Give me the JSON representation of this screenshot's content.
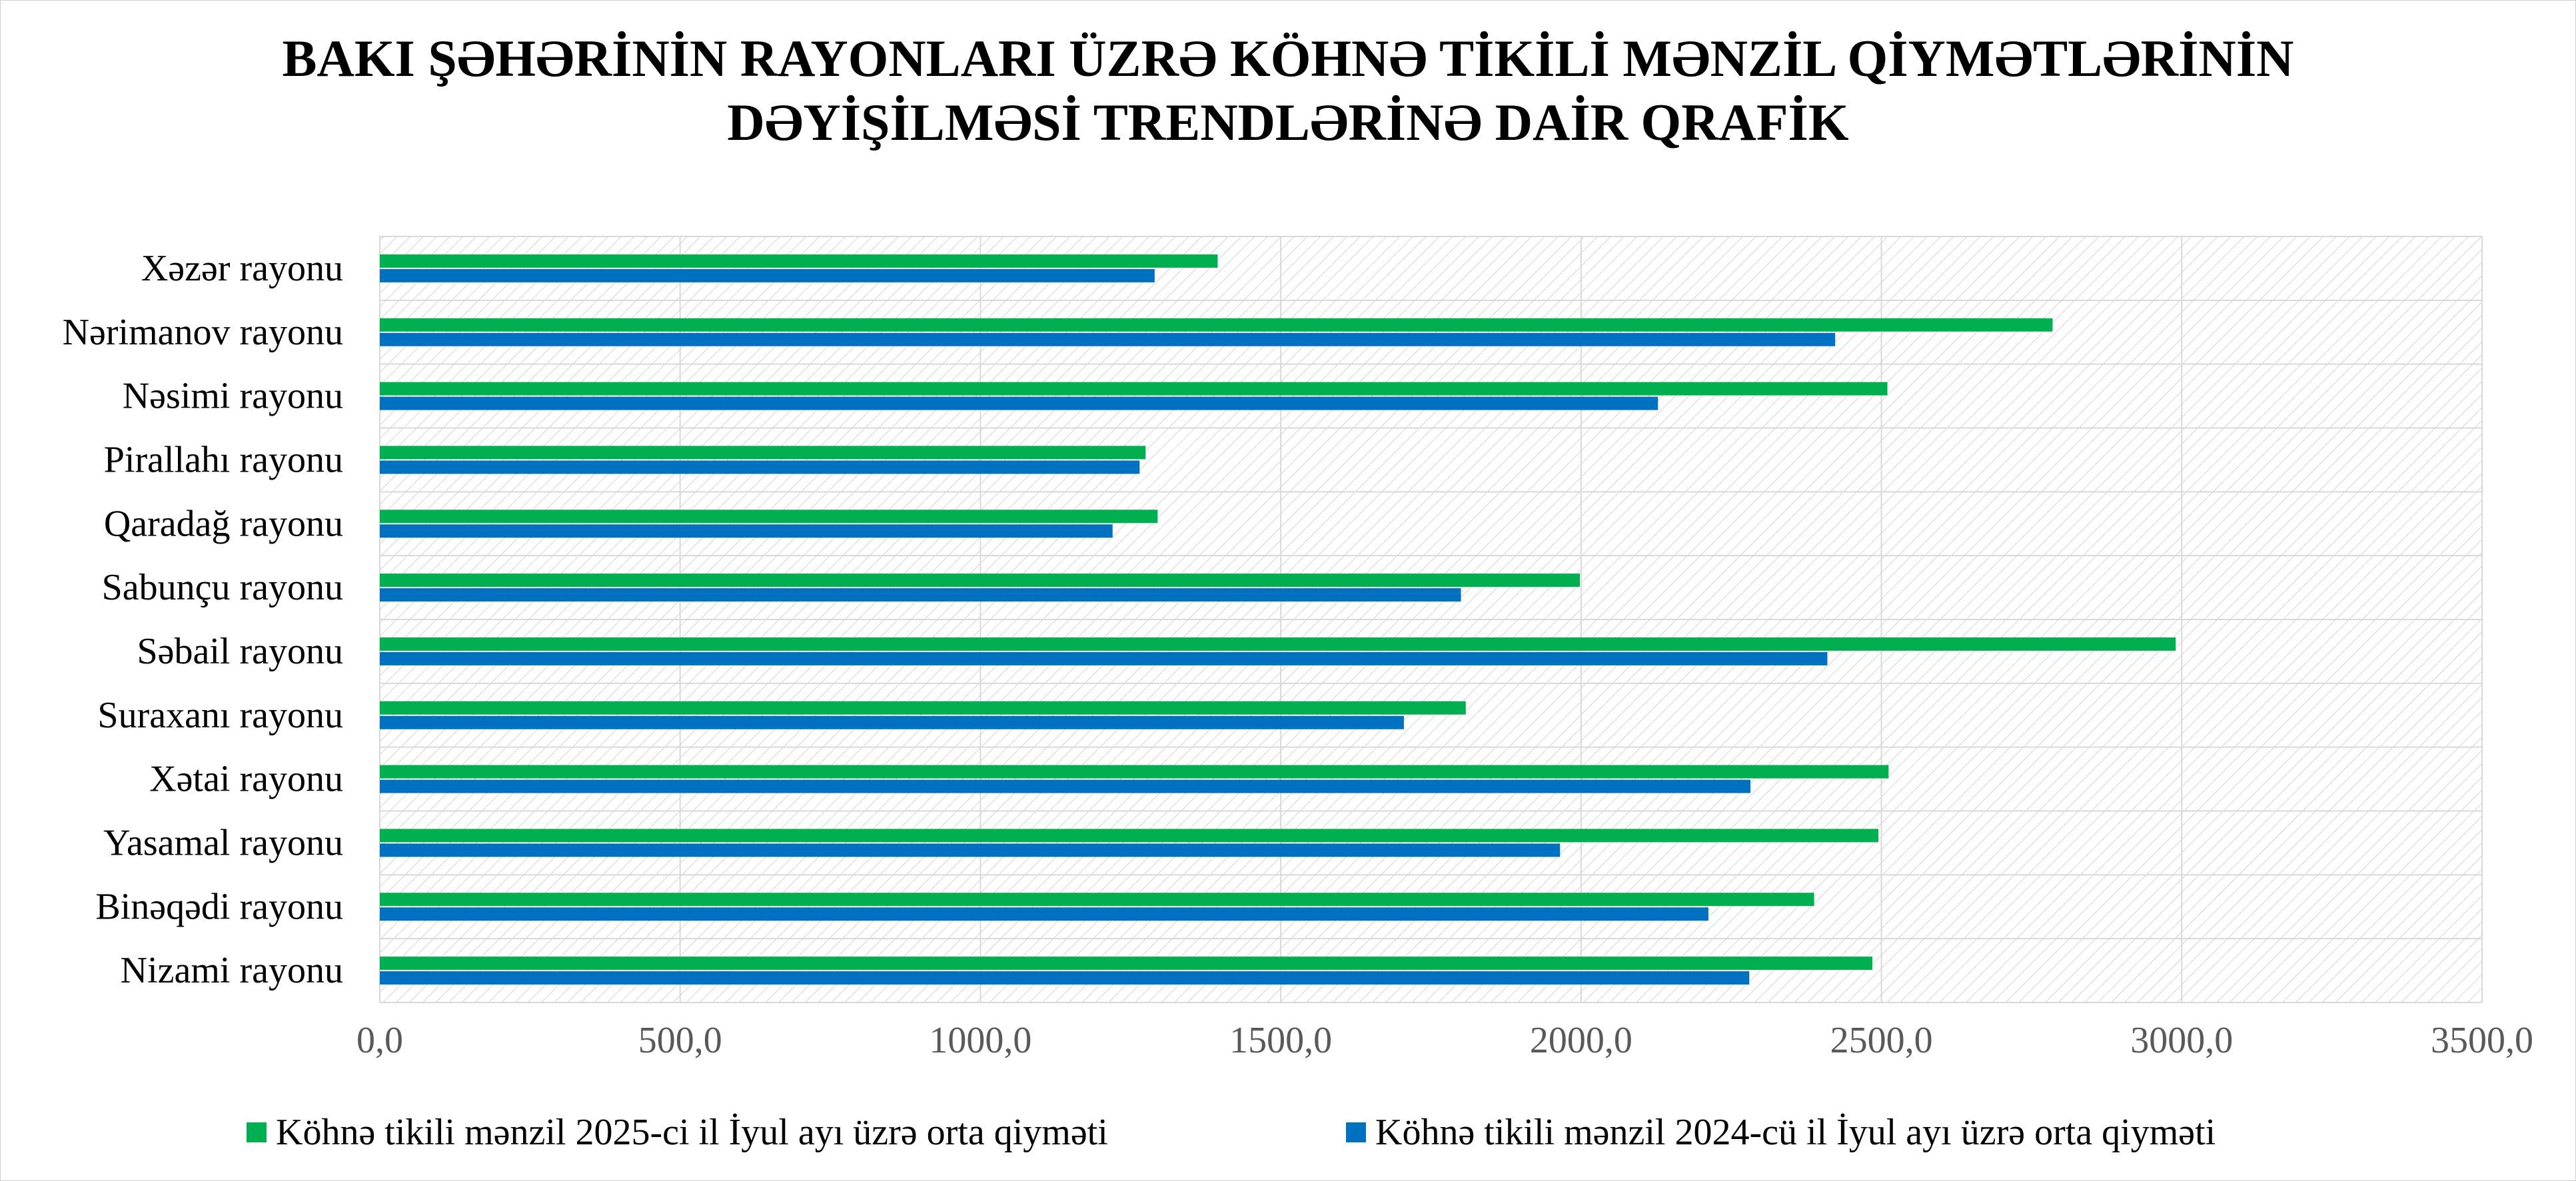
{
  "colors": {
    "series_2025": "#00b050",
    "series_2024": "#0070c0",
    "gridline": "#d9d9d9",
    "hatch": "#d0d0d0"
  },
  "chart_data": {
    "type": "bar",
    "orientation": "horizontal",
    "title_lines": [
      "BAKI ŞƏHƏRİNİN RAYONLARI ÜZRƏ KÖHNƏ TİKİLİ MƏNZİL QİYMƏTLƏRİNİN",
      "DƏYİŞİLMƏSİ TRENDLƏRİNƏ DAİR QRAFİK"
    ],
    "categories": [
      "Xəzər rayonu",
      "Nərimanov rayonu",
      "Nəsimi rayonu",
      "Pirallahı rayonu",
      "Qaradağ rayonu",
      "Sabunçu rayonu",
      "Səbail rayonu",
      "Suraxanı rayonu",
      "Xətai rayonu",
      "Yasamal rayonu",
      "Binəqədi rayonu",
      "Nizami rayonu"
    ],
    "series": [
      {
        "name": "Köhnə tikili mənzil 2025-ci il İyul ayı üzrə orta qiymәti",
        "color": "#00b050",
        "values": [
          1395,
          2785,
          2510,
          1275,
          1295,
          1998,
          2990,
          1808,
          2512,
          2495,
          2388,
          2485
        ]
      },
      {
        "name": "Köhnə tikili mənzil 2024-cü il İyul ayı üzrə orta qiymәti",
        "color": "#0070c0",
        "values": [
          1290,
          2423,
          2128,
          1265,
          1220,
          1800,
          2410,
          1705,
          2282,
          1965,
          2212,
          2280
        ]
      }
    ],
    "xlim": [
      0,
      3500
    ],
    "x_ticks": [
      "0,0",
      "500,0",
      "1000,0",
      "1500,0",
      "2000,0",
      "2500,0",
      "3000,0",
      "3500,0"
    ],
    "x_tick_values": [
      0,
      500,
      1000,
      1500,
      2000,
      2500,
      3000,
      3500
    ],
    "grid": true,
    "legend_position": "bottom"
  }
}
